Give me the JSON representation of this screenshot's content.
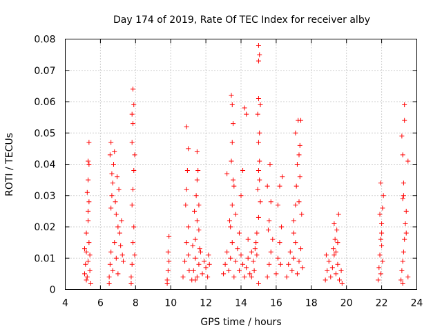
{
  "chart_data": {
    "type": "scatter",
    "title": "Day 174 of 2019, Rate Of TEC Index for receiver alby",
    "xlabel": "GPS time / hours",
    "ylabel": "ROTI / TECUs",
    "xlim": [
      4,
      24
    ],
    "ylim": [
      0,
      0.08
    ],
    "xticks": [
      4,
      6,
      8,
      10,
      12,
      14,
      16,
      18,
      20,
      22,
      24
    ],
    "yticks": [
      0,
      0.01,
      0.02,
      0.03,
      0.04,
      0.05,
      0.06,
      0.07,
      0.08
    ],
    "ytick_labels": [
      "0",
      "0.01",
      "0.02",
      "0.03",
      "0.04",
      "0.05",
      "0.06",
      "0.07",
      "0.08"
    ],
    "grid": true,
    "marker": "+",
    "color": "#ff0000",
    "series": [
      {
        "name": "ROTI",
        "x": [
          5.1,
          5.15,
          5.2,
          5.25,
          5.3,
          5.35,
          5.4,
          5.2,
          5.3,
          5.35,
          5.25,
          5.3,
          5.4,
          5.3,
          5.35,
          5.35,
          5.3,
          5.2,
          5.45,
          5.1,
          6.5,
          6.55,
          6.6,
          6.7,
          6.8,
          6.9,
          7.0,
          7.1,
          7.2,
          7.3,
          6.6,
          6.65,
          6.7,
          6.75,
          6.8,
          6.6,
          6.85,
          6.9,
          7.0,
          6.55,
          6.95,
          7.05,
          6.65,
          7.15,
          6.5,
          7.25,
          7.75,
          7.8,
          7.85,
          7.9,
          7.8,
          7.85,
          7.9,
          7.95,
          7.8,
          7.85,
          7.9,
          7.85,
          7.75,
          7.95,
          7.8,
          9.8,
          9.85,
          9.9,
          9.85,
          9.9,
          9.8,
          10.7,
          10.8,
          10.9,
          11.0,
          10.85,
          10.9,
          10.95,
          11.0,
          10.9,
          11.0,
          11.05,
          11.2,
          11.3,
          11.4,
          11.5,
          11.6,
          11.7,
          11.8,
          11.9,
          12.0,
          12.1,
          12.2,
          11.4,
          11.5,
          11.6,
          11.45,
          11.5,
          11.55,
          11.5,
          11.6,
          11.35,
          11.65,
          11.4,
          12.15,
          11.25,
          13.0,
          13.1,
          13.2,
          13.3,
          13.4,
          13.5,
          13.6,
          13.7,
          13.8,
          13.9,
          14.0,
          14.1,
          14.2,
          14.3,
          14.4,
          14.5,
          14.6,
          13.4,
          13.5,
          13.6,
          13.45,
          13.5,
          13.55,
          13.5,
          13.45,
          13.55,
          14.0,
          14.2,
          14.3,
          13.7,
          13.9,
          14.1,
          13.2,
          13.35,
          14.4,
          14.6,
          14.7,
          14.8,
          14.9,
          15.0,
          15.1,
          14.75,
          14.85,
          14.95,
          15.0,
          15.05,
          15.0,
          15.05,
          14.95,
          15.1,
          15.0,
          15.0,
          15.05,
          15.0,
          14.9,
          15.05,
          15.0,
          15.5,
          15.6,
          15.7,
          15.8,
          15.6,
          15.7,
          15.5,
          15.65,
          15.55,
          16.0,
          16.1,
          16.2,
          16.3,
          16.1,
          16.2,
          16.35,
          16.25,
          16.6,
          16.7,
          16.8,
          16.9,
          17.0,
          17.1,
          17.2,
          17.3,
          17.4,
          17.5,
          17.0,
          17.1,
          17.15,
          17.3,
          17.35,
          17.2,
          17.3,
          17.35,
          17.1,
          17.25,
          17.4,
          17.0,
          17.45,
          18.8,
          18.9,
          19.0,
          19.1,
          19.2,
          19.3,
          19.4,
          19.5,
          19.6,
          19.7,
          19.25,
          19.35,
          19.45,
          19.3,
          19.4,
          19.5,
          18.85,
          19.55,
          19.75,
          21.8,
          21.85,
          21.9,
          21.95,
          22.0,
          22.05,
          22.1,
          21.95,
          22.0,
          21.9,
          22.05,
          21.95,
          22.0,
          23.1,
          23.15,
          23.2,
          23.25,
          23.3,
          23.35,
          23.4,
          23.5,
          23.2,
          23.25,
          23.2,
          23.15,
          23.3,
          23.3,
          23.25,
          23.4,
          23.5,
          23.2
        ],
        "y": [
          0.005,
          0.008,
          0.012,
          0.004,
          0.009,
          0.015,
          0.006,
          0.018,
          0.022,
          0.028,
          0.031,
          0.025,
          0.011,
          0.035,
          0.04,
          0.047,
          0.041,
          0.003,
          0.002,
          0.013,
          0.004,
          0.008,
          0.012,
          0.006,
          0.015,
          0.01,
          0.005,
          0.018,
          0.022,
          0.009,
          0.026,
          0.03,
          0.034,
          0.04,
          0.044,
          0.047,
          0.028,
          0.024,
          0.02,
          0.043,
          0.036,
          0.032,
          0.037,
          0.014,
          0.002,
          0.011,
          0.004,
          0.008,
          0.015,
          0.02,
          0.027,
          0.032,
          0.038,
          0.043,
          0.047,
          0.053,
          0.059,
          0.064,
          0.002,
          0.011,
          0.056,
          0.003,
          0.006,
          0.009,
          0.012,
          0.017,
          0.002,
          0.004,
          0.009,
          0.015,
          0.02,
          0.027,
          0.032,
          0.038,
          0.045,
          0.052,
          0.011,
          0.006,
          0.003,
          0.006,
          0.01,
          0.004,
          0.008,
          0.012,
          0.005,
          0.009,
          0.007,
          0.004,
          0.008,
          0.016,
          0.022,
          0.027,
          0.03,
          0.035,
          0.038,
          0.044,
          0.019,
          0.025,
          0.013,
          0.003,
          0.011,
          0.014,
          0.005,
          0.008,
          0.012,
          0.006,
          0.01,
          0.015,
          0.004,
          0.009,
          0.013,
          0.006,
          0.011,
          0.008,
          0.004,
          0.007,
          0.01,
          0.005,
          0.012,
          0.02,
          0.027,
          0.033,
          0.041,
          0.047,
          0.053,
          0.059,
          0.062,
          0.035,
          0.03,
          0.058,
          0.056,
          0.024,
          0.018,
          0.038,
          0.037,
          0.022,
          0.016,
          0.004,
          0.009,
          0.013,
          0.018,
          0.023,
          0.028,
          0.006,
          0.015,
          0.032,
          0.038,
          0.041,
          0.047,
          0.05,
          0.056,
          0.059,
          0.061,
          0.073,
          0.075,
          0.078,
          0.011,
          0.035,
          0.002,
          0.004,
          0.008,
          0.012,
          0.016,
          0.022,
          0.028,
          0.033,
          0.04,
          0.019,
          0.005,
          0.01,
          0.015,
          0.02,
          0.027,
          0.033,
          0.036,
          0.008,
          0.004,
          0.008,
          0.012,
          0.006,
          0.01,
          0.015,
          0.005,
          0.009,
          0.013,
          0.007,
          0.022,
          0.027,
          0.033,
          0.028,
          0.036,
          0.04,
          0.043,
          0.046,
          0.05,
          0.054,
          0.054,
          0.018,
          0.024,
          0.003,
          0.006,
          0.009,
          0.004,
          0.007,
          0.011,
          0.005,
          0.008,
          0.003,
          0.006,
          0.013,
          0.016,
          0.019,
          0.021,
          0.012,
          0.015,
          0.011,
          0.024,
          0.002,
          0.003,
          0.007,
          0.011,
          0.016,
          0.021,
          0.026,
          0.03,
          0.034,
          0.014,
          0.024,
          0.009,
          0.005,
          0.018,
          0.003,
          0.006,
          0.009,
          0.012,
          0.016,
          0.021,
          0.025,
          0.004,
          0.029,
          0.034,
          0.043,
          0.049,
          0.054,
          0.059,
          0.03,
          0.018,
          0.041,
          0.002
        ]
      }
    ]
  }
}
